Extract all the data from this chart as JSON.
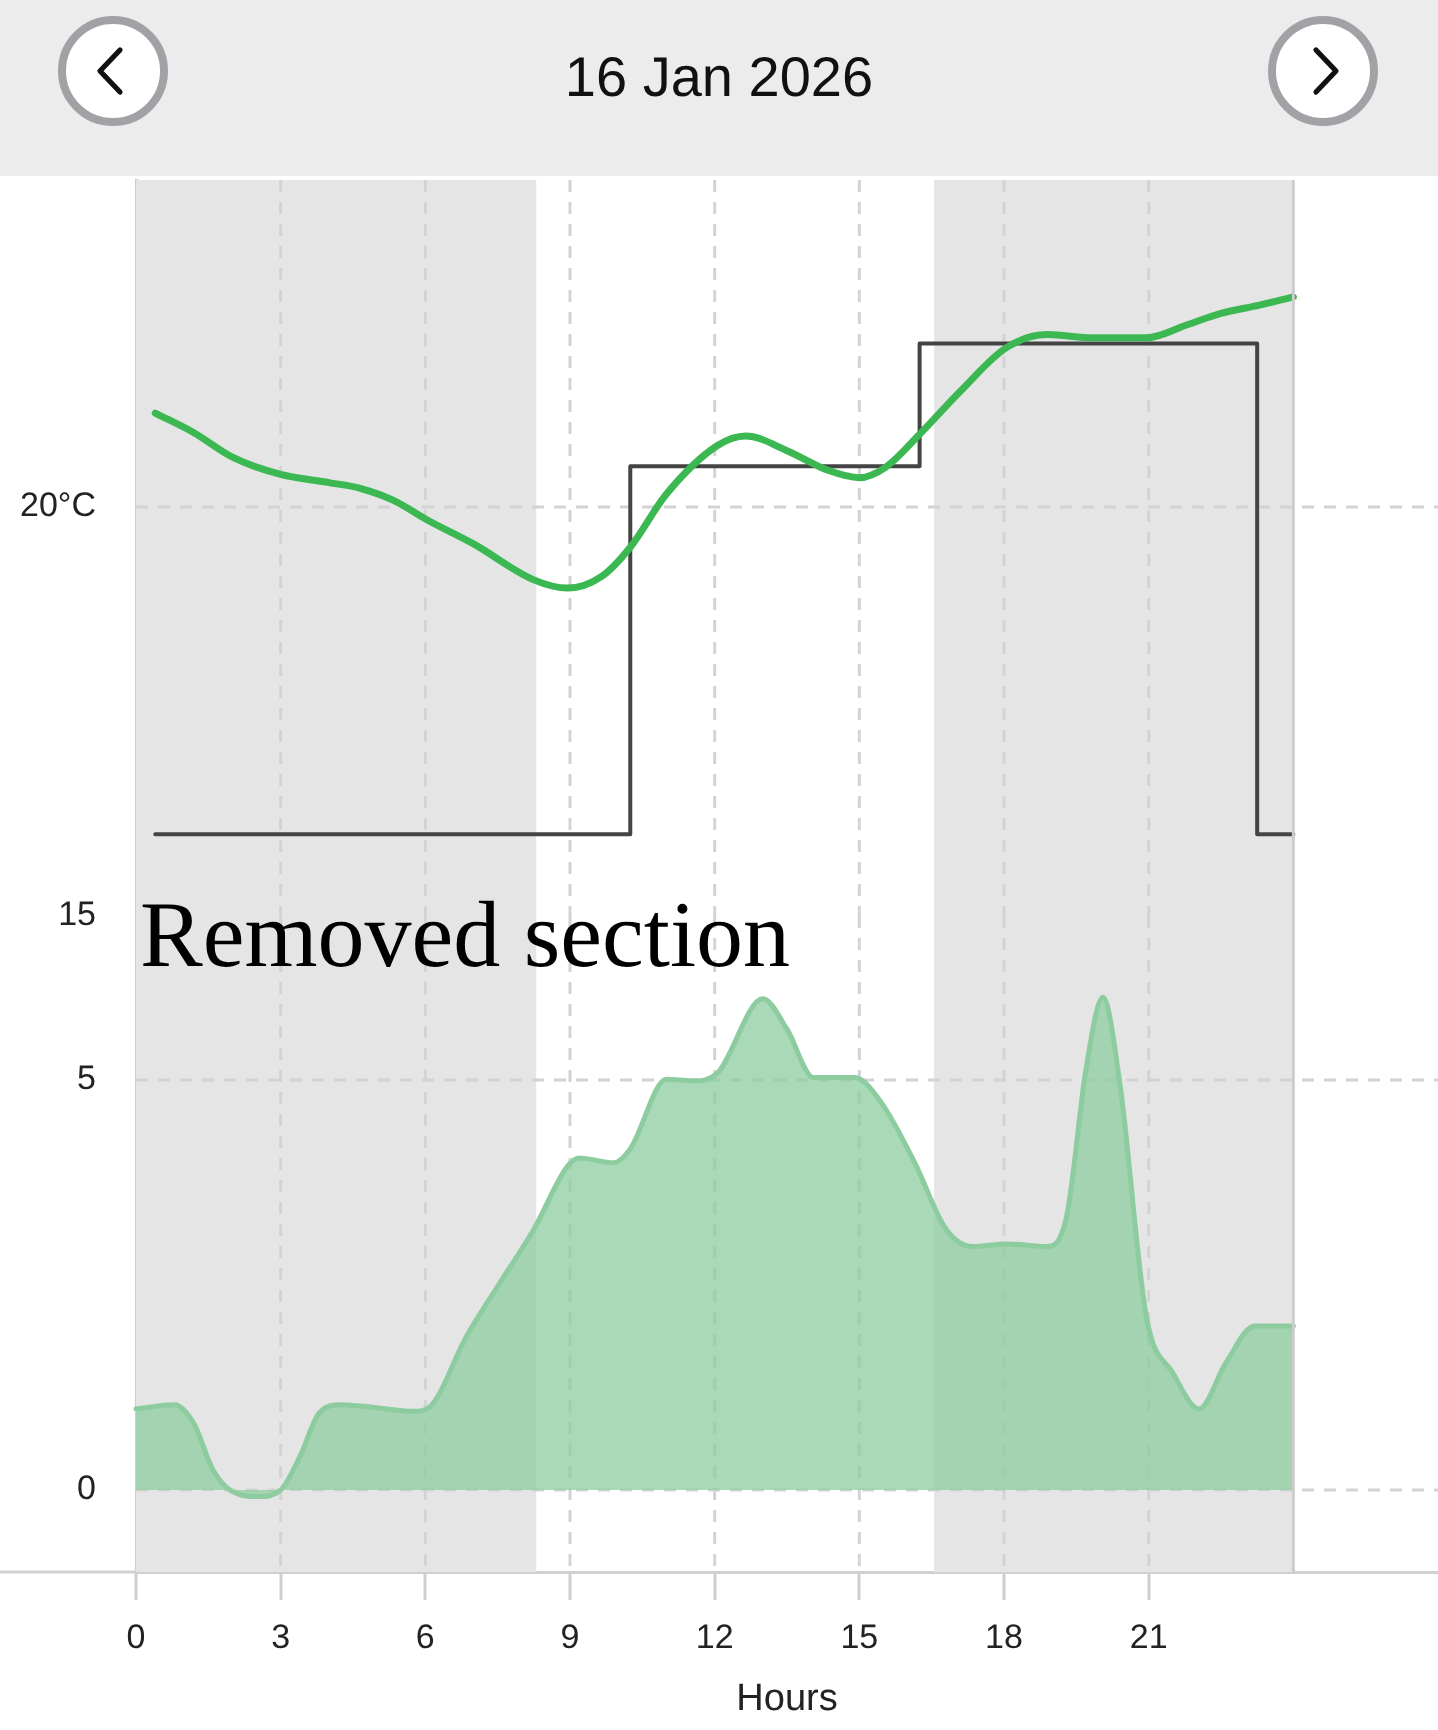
{
  "chart_data": [
    {
      "type": "line",
      "title": "16 Jan 2026",
      "xlim": [
        0,
        27
      ],
      "xticks": [
        0,
        3,
        6,
        9,
        12,
        15,
        18,
        21
      ],
      "ylim": [
        15,
        24
      ],
      "yticks": [
        15,
        {
          "value": 20,
          "label": "20°C"
        }
      ],
      "tick_labels": "y",
      "grid": true,
      "bands": [
        {
          "axis": "x",
          "from": 0,
          "to": 8.3,
          "color": "#e5e5e5"
        },
        {
          "axis": "x",
          "from": 16.55,
          "to": 24,
          "color": "#e5e5e5"
        }
      ],
      "ref_lines": [
        {
          "axis": "x",
          "value": 24,
          "color": "#cccccc"
        }
      ],
      "series": [
        {
          "type": "line",
          "color": "#3cb853",
          "x": [
            0.4,
            1.2,
            2.0,
            3.0,
            4.0,
            4.65,
            5.35,
            6.05,
            7.0,
            8.25,
            8.95,
            9.65,
            10.25,
            11.0,
            12.05,
            12.65,
            13.5,
            14.35,
            15.0,
            15.55,
            16.25,
            17.1,
            18.05,
            18.9,
            19.85,
            20.95,
            21.8,
            22.5,
            23.3,
            24.0
          ],
          "values": [
            21.15,
            20.91,
            20.61,
            20.4,
            20.3,
            20.23,
            20.08,
            19.84,
            19.55,
            19.11,
            19.01,
            19.15,
            19.51,
            20.16,
            20.75,
            20.87,
            20.69,
            20.45,
            20.36,
            20.49,
            20.89,
            21.42,
            21.95,
            22.11,
            22.07,
            22.07,
            22.23,
            22.37,
            22.47,
            22.57
          ]
        },
        {
          "type": "step",
          "color": "#444444",
          "x": [
            0.4,
            10.25,
            16.25,
            23.25,
            24
          ],
          "values": [
            16,
            20.5,
            22,
            16,
            16
          ]
        }
      ]
    },
    {
      "type": "area",
      "xlabel": "Hours",
      "xlim": [
        0,
        27
      ],
      "xticks": [
        0,
        3,
        6,
        9,
        12,
        15,
        18,
        21
      ],
      "ylim": [
        -1,
        7
      ],
      "yticks": [
        0,
        5
      ],
      "grid": true,
      "bands": [
        {
          "axis": "x",
          "from": 0,
          "to": 8.3,
          "color": "#e5e5e5"
        },
        {
          "axis": "x",
          "from": 16.55,
          "to": 24,
          "color": "#e5e5e5"
        }
      ],
      "ref_lines": [
        {
          "axis": "x",
          "value": 24,
          "color": "#cccccc"
        }
      ],
      "annotations": [
        "Removed section"
      ],
      "color": "#8ccc9f",
      "x": [
        0,
        0.8,
        1.2,
        1.6,
        2.0,
        2.55,
        3.0,
        3.4,
        3.8,
        4.25,
        4.9,
        5.75,
        6.1,
        6.85,
        7.55,
        8.25,
        8.95,
        9.2,
        9.9,
        10.25,
        11.0,
        11.55,
        12.05,
        13.0,
        13.5,
        14.05,
        14.9,
        15.45,
        16.15,
        16.8,
        17.35,
        18.05,
        18.9,
        19.3,
        19.7,
        20.05,
        20.4,
        20.95,
        21.5,
        22.05,
        22.6,
        23.2,
        24.0
      ],
      "values": [
        0.99,
        1.04,
        0.81,
        0.24,
        -0.02,
        -0.08,
        0.0,
        0.41,
        0.94,
        1.04,
        1.01,
        0.96,
        1.02,
        1.87,
        2.53,
        3.18,
        3.95,
        4.05,
        3.99,
        4.16,
        5.01,
        4.99,
        5.08,
        5.99,
        5.62,
        5.03,
        5.03,
        4.73,
        3.99,
        3.18,
        2.97,
        3.0,
        2.97,
        3.34,
        5.13,
        6.01,
        4.97,
        2.12,
        1.43,
        0.99,
        1.55,
        2.0,
        2.0
      ]
    }
  ]
}
